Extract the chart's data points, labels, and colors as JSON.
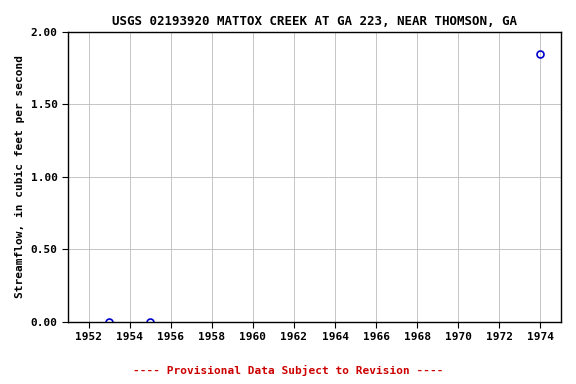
{
  "title": "USGS 02193920 MATTOX CREEK AT GA 223, NEAR THOMSON, GA",
  "xlabel": "",
  "ylabel": "Streamflow, in cubic feet per second",
  "xlim": [
    1951,
    1975
  ],
  "ylim": [
    0.0,
    2.0
  ],
  "xticks": [
    1952,
    1954,
    1956,
    1958,
    1960,
    1962,
    1964,
    1966,
    1968,
    1970,
    1972,
    1974
  ],
  "yticks": [
    0.0,
    0.5,
    1.0,
    1.5,
    2.0
  ],
  "data_x": [
    1953.0,
    1955.0,
    1974.0
  ],
  "data_y": [
    0.0,
    0.0,
    1.85
  ],
  "point_color": "#0000cc",
  "point_marker": "o",
  "point_markersize": 5,
  "point_markerfacecolor": "none",
  "point_markeredgewidth": 1.2,
  "grid_color": "#bbbbbb",
  "grid_linestyle": "-",
  "plot_bg_color": "#ffffff",
  "fig_bg_color": "#ffffff",
  "title_fontsize": 9,
  "ylabel_fontsize": 8,
  "tick_fontsize": 8,
  "provisional_text": "---- Provisional Data Subject to Revision ----",
  "provisional_color": "#cc0000",
  "provisional_fontsize": 8,
  "spine_color": "#000000"
}
